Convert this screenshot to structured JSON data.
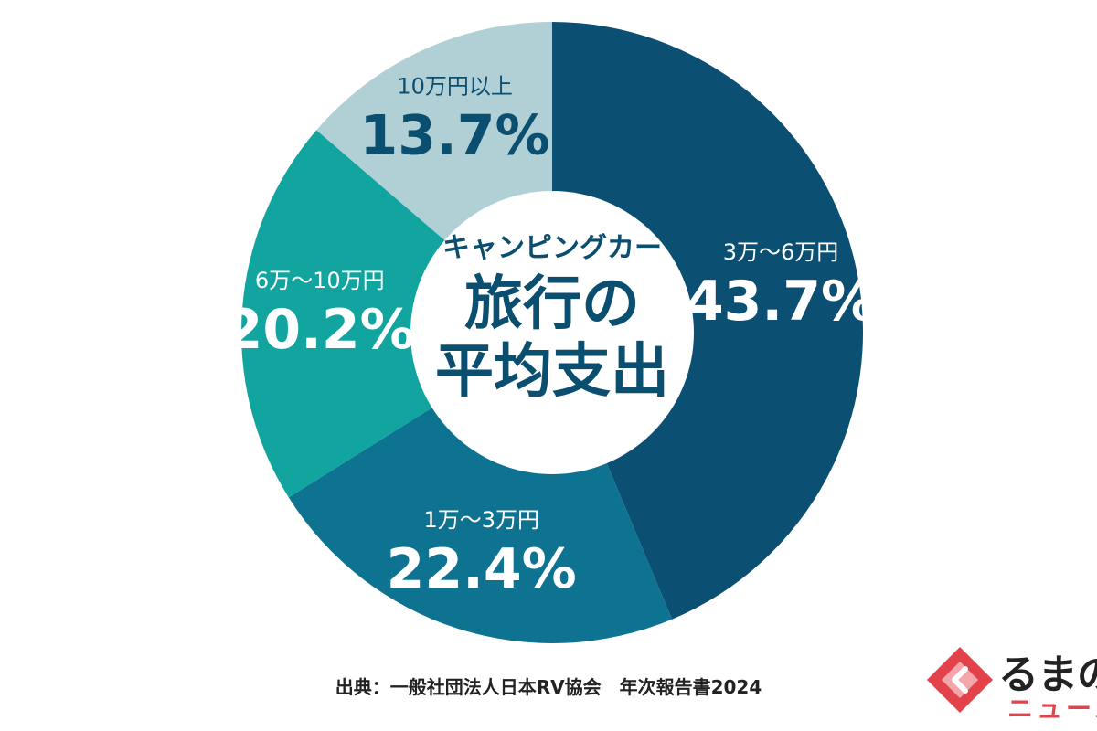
{
  "chart_data": {
    "type": "pie",
    "title": "旅行の平均支出",
    "subtitle": "キャンピングカー",
    "title_line1": "旅行の",
    "title_line2": "平均支出",
    "slices": [
      {
        "label": "3万～6万円",
        "value": 43.7,
        "value_text": "43.7%",
        "color": "#0b4f73"
      },
      {
        "label": "1万～3万円",
        "value": 22.4,
        "value_text": "22.4%",
        "color": "#0e7291"
      },
      {
        "label": "6万～10万円",
        "value": 20.2,
        "value_text": "20.2%",
        "color": "#12a59f"
      },
      {
        "label": "10万円以上",
        "value": 13.7,
        "value_text": "13.7%",
        "color": "#b1d0d6"
      }
    ],
    "start": "12 o'clock",
    "direction": "clockwise",
    "donut": true
  },
  "source": "出典：一般社団法人日本RV協会　年次報告書2024",
  "logo": {
    "line1": "るまの",
    "line2": "ニュース",
    "colors": {
      "mark": "#e2434b",
      "mark_inner": "#f4a7aa"
    },
    "icon": "chevron-left-icon"
  }
}
